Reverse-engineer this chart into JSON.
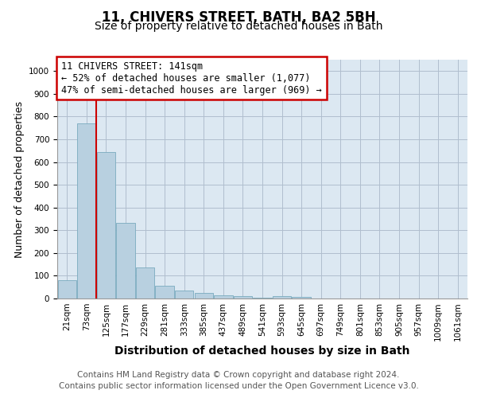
{
  "title1": "11, CHIVERS STREET, BATH, BA2 5BH",
  "title2": "Size of property relative to detached houses in Bath",
  "xlabel": "Distribution of detached houses by size in Bath",
  "ylabel": "Number of detached properties",
  "categories": [
    "21sqm",
    "73sqm",
    "125sqm",
    "177sqm",
    "229sqm",
    "281sqm",
    "333sqm",
    "385sqm",
    "437sqm",
    "489sqm",
    "541sqm",
    "593sqm",
    "645sqm",
    "697sqm",
    "749sqm",
    "801sqm",
    "853sqm",
    "905sqm",
    "957sqm",
    "1009sqm",
    "1061sqm"
  ],
  "values": [
    82,
    770,
    643,
    333,
    135,
    57,
    35,
    25,
    15,
    10,
    5,
    10,
    8,
    0,
    0,
    0,
    0,
    0,
    0,
    0,
    0
  ],
  "bar_color": "#b8d0e0",
  "bar_edge_color": "#7aaabf",
  "vline_x": 1.5,
  "vline_color": "#cc0000",
  "annotation_text": "11 CHIVERS STREET: 141sqm\n← 52% of detached houses are smaller (1,077)\n47% of semi-detached houses are larger (969) →",
  "annotation_box_color": "#ffffff",
  "annotation_box_edge": "#cc0000",
  "ylim": [
    0,
    1050
  ],
  "yticks": [
    0,
    100,
    200,
    300,
    400,
    500,
    600,
    700,
    800,
    900,
    1000
  ],
  "background_color": "#dce8f2",
  "footer1": "Contains HM Land Registry data © Crown copyright and database right 2024.",
  "footer2": "Contains public sector information licensed under the Open Government Licence v3.0.",
  "title1_fontsize": 12,
  "title2_fontsize": 10,
  "xlabel_fontsize": 10,
  "ylabel_fontsize": 9,
  "tick_fontsize": 7.5,
  "footer_fontsize": 7.5,
  "ann_fontsize": 8.5
}
